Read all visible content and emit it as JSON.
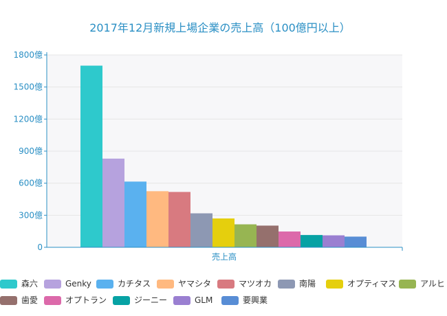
{
  "chart_data": {
    "type": "bar",
    "title": "2017年12月新規上場企業の売上高（100億円以上）",
    "categories": [
      "売上高"
    ],
    "series": [
      {
        "name": "森六",
        "values": [
          1700
        ],
        "color": "#2ec9cc"
      },
      {
        "name": "Genky",
        "values": [
          830
        ],
        "color": "#b6a2de"
      },
      {
        "name": "カチタス",
        "values": [
          615
        ],
        "color": "#5ab1ef"
      },
      {
        "name": "ヤマシタ",
        "values": [
          525
        ],
        "color": "#ffb980"
      },
      {
        "name": "マツオカ",
        "values": [
          518
        ],
        "color": "#d87a80"
      },
      {
        "name": "南陽",
        "values": [
          318
        ],
        "color": "#8d98b3"
      },
      {
        "name": "オプティマス",
        "values": [
          270
        ],
        "color": "#e5cf0d"
      },
      {
        "name": "アルヒ",
        "values": [
          215
        ],
        "color": "#97b552"
      },
      {
        "name": "歯愛",
        "values": [
          203
        ],
        "color": "#95706d"
      },
      {
        "name": "オプトラン",
        "values": [
          148
        ],
        "color": "#dc69aa"
      },
      {
        "name": "ジーニー",
        "values": [
          115
        ],
        "color": "#07a2a4"
      },
      {
        "name": "GLM",
        "values": [
          112
        ],
        "color": "#9a7fd1"
      },
      {
        "name": "要興業",
        "values": [
          100
        ],
        "color": "#588dd5"
      }
    ],
    "ylim": [
      0,
      1800
    ],
    "yticks": [
      {
        "value": 0,
        "label": "0"
      },
      {
        "value": 300,
        "label": "300億"
      },
      {
        "value": 600,
        "label": "600億"
      },
      {
        "value": 900,
        "label": "900億"
      },
      {
        "value": 1200,
        "label": "1200億"
      },
      {
        "value": 1500,
        "label": "1500億"
      },
      {
        "value": 1800,
        "label": "1800億"
      }
    ],
    "grid": true,
    "legend_position": "bottom",
    "axis_color": "#2a8fc4"
  }
}
